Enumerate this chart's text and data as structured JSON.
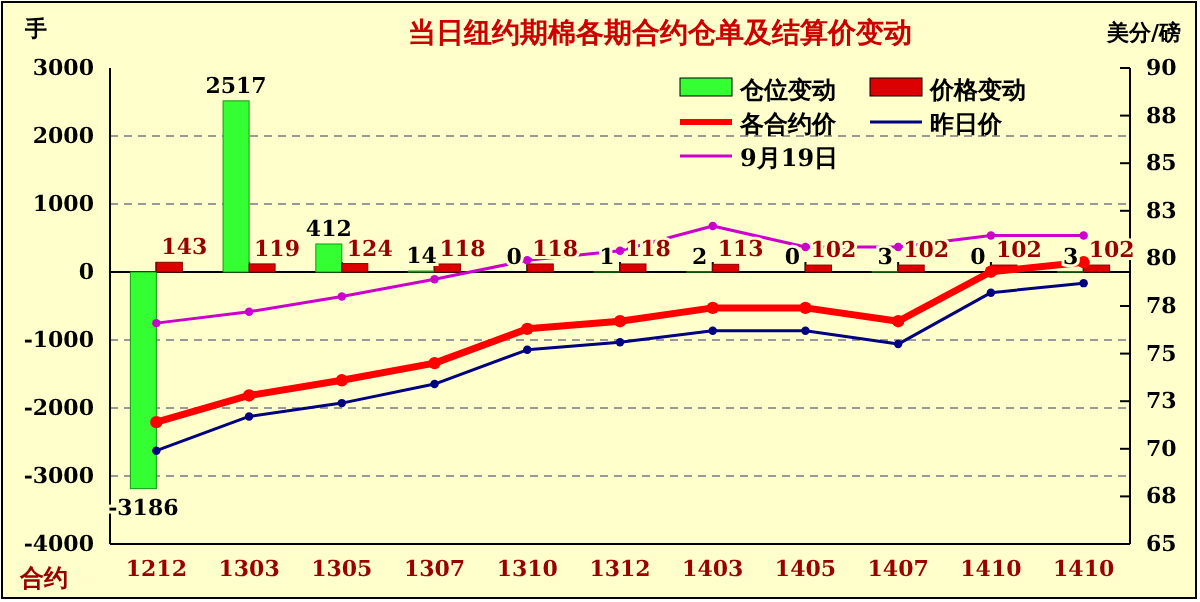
{
  "chart_data": {
    "type": "bar",
    "title": "当日纽约期棉各期合约仓单及结算价变动",
    "ylabel": "手",
    "y2label": "美分/磅",
    "xlabel": "合约",
    "categories": [
      "1212",
      "1303",
      "1305",
      "1307",
      "1310",
      "1312",
      "1403",
      "1405",
      "1407",
      "1410",
      "1410"
    ],
    "ylim": [
      -4000,
      3000
    ],
    "yticks": [
      -4000,
      -3000,
      -2000,
      -1000,
      0,
      1000,
      2000,
      3000
    ],
    "y2lim": [
      65,
      90
    ],
    "y2ticks": [
      65,
      {
        "value": 67.5,
        "label": "68"
      },
      70,
      {
        "value": 72.5,
        "label": "73"
      },
      75,
      {
        "value": 77.5,
        "label": "78"
      },
      80,
      {
        "value": 82.5,
        "label": "83"
      },
      85,
      {
        "value": 87.5,
        "label": "88"
      },
      90
    ],
    "grid": "y",
    "legend": "top right",
    "marker": "circle",
    "series": [
      {
        "name": "仓位变动",
        "color": "#33ff33",
        "values": [
          -3186,
          2517,
          412,
          14,
          0,
          1,
          2,
          0,
          3,
          0,
          3
        ],
        "value_labels": [
          "-3186",
          "2517",
          "412",
          "14",
          "0",
          "1",
          "2",
          "0",
          "3",
          "0",
          "3"
        ]
      },
      {
        "name": "价格变动",
        "color": "#dd0000",
        "values": [
          143,
          119,
          124,
          118,
          118,
          118,
          113,
          102,
          102,
          102,
          102
        ],
        "value_labels": [
          "143",
          "119",
          "124",
          "118",
          "118",
          "118",
          "113",
          "102",
          "102",
          "102",
          "102"
        ]
      },
      {
        "name": "各合约价",
        "type": "line",
        "axis": "y2",
        "color": "#ff0000",
        "values": [
          71.4,
          72.8,
          73.6,
          74.5,
          76.3,
          76.7,
          77.4,
          77.4,
          76.7,
          79.3,
          79.8
        ]
      },
      {
        "name": "昨日价",
        "type": "line",
        "axis": "y2",
        "color": "#000080",
        "values": [
          69.9,
          71.7,
          72.4,
          73.4,
          75.2,
          75.6,
          76.2,
          76.2,
          75.5,
          78.2,
          78.7
        ]
      },
      {
        "name": "9月19日",
        "type": "line",
        "axis": "y2",
        "color": "#cc00cc",
        "values": [
          76.6,
          77.2,
          78.0,
          78.9,
          79.9,
          80.4,
          81.7,
          80.6,
          80.6,
          81.2,
          81.2
        ]
      }
    ]
  }
}
